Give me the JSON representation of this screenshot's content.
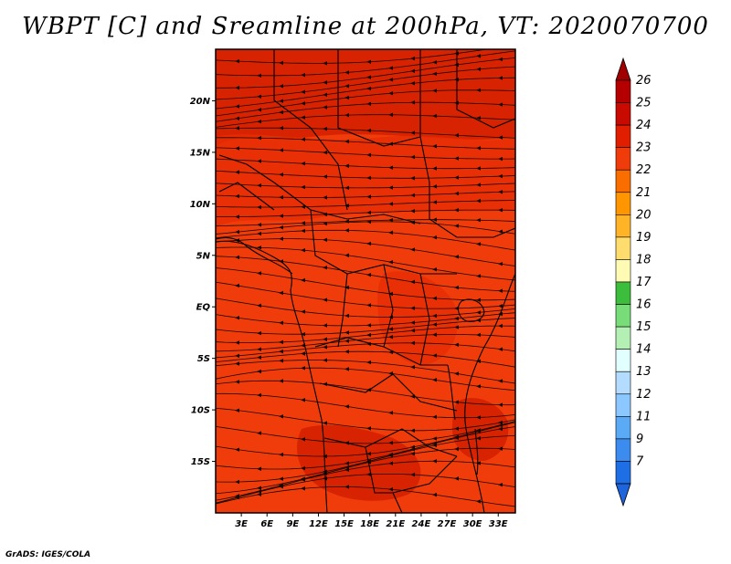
{
  "header": {
    "title": "WBPT [C] and Sreamline at 200hPa, VT: 2020070700"
  },
  "footer": {
    "credit": "GrADS: IGES/COLA"
  },
  "map": {
    "lon_range": [
      0,
      35
    ],
    "lat_range": [
      -20,
      25
    ],
    "lat_ticks": [
      {
        "value": 20,
        "label": "20N"
      },
      {
        "value": 15,
        "label": "15N"
      },
      {
        "value": 10,
        "label": "10N"
      },
      {
        "value": 5,
        "label": "5N"
      },
      {
        "value": 0,
        "label": "EQ"
      },
      {
        "value": -5,
        "label": "5S"
      },
      {
        "value": -10,
        "label": "10S"
      },
      {
        "value": -15,
        "label": "15S"
      }
    ],
    "lon_ticks": [
      {
        "value": 3,
        "label": "3E"
      },
      {
        "value": 6,
        "label": "6E"
      },
      {
        "value": 9,
        "label": "9E"
      },
      {
        "value": 12,
        "label": "12E"
      },
      {
        "value": 15,
        "label": "15E"
      },
      {
        "value": 18,
        "label": "18E"
      },
      {
        "value": 21,
        "label": "21E"
      },
      {
        "value": 24,
        "label": "24E"
      },
      {
        "value": 27,
        "label": "27E"
      },
      {
        "value": 30,
        "label": "30E"
      },
      {
        "value": 33,
        "label": "33E"
      }
    ],
    "base_color": "#f03c0a",
    "dark_color": "#d21e00",
    "mid_color": "#e62d05",
    "line_color": "#1a0a00"
  },
  "colorbar": {
    "levels": [
      {
        "label": "26",
        "color": "#b40000"
      },
      {
        "label": "25",
        "color": "#c80a00"
      },
      {
        "label": "24",
        "color": "#e11e00"
      },
      {
        "label": "23",
        "color": "#f03c0a"
      },
      {
        "label": "22",
        "color": "#fa6e00"
      },
      {
        "label": "21",
        "color": "#ff9600"
      },
      {
        "label": "20",
        "color": "#ffb428"
      },
      {
        "label": "19",
        "color": "#ffdc6e"
      },
      {
        "label": "18",
        "color": "#fffab4"
      },
      {
        "label": "17",
        "color": "#3cbe3c"
      },
      {
        "label": "16",
        "color": "#78dc78"
      },
      {
        "label": "15",
        "color": "#b4f0b4"
      },
      {
        "label": "14",
        "color": "#e1ffff"
      },
      {
        "label": "13",
        "color": "#b4dcff"
      },
      {
        "label": "12",
        "color": "#8cc8ff"
      },
      {
        "label": "11",
        "color": "#5aaaf5"
      },
      {
        "label": "9",
        "color": "#3c8cf0"
      },
      {
        "label": "7",
        "color": "#1e6ee6"
      }
    ],
    "top_color": "#a00000",
    "bottom_color": "#1e64dc"
  }
}
